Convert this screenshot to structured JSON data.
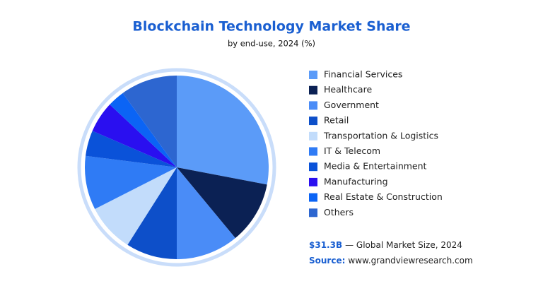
{
  "chart_data": {
    "type": "pie",
    "title": "Blockchain Technology Market Share",
    "subtitle": "by end-use, 2024 (%)",
    "categories": [
      "Financial Services",
      "Healthcare",
      "Government",
      "Retail",
      "Transportation & Logistics",
      "IT & Telecom",
      "Media & Entertainment",
      "Manufacturing",
      "Real Estate & Construction",
      "Others"
    ],
    "values": [
      28,
      11,
      11,
      9,
      8.5,
      9.5,
      4.5,
      5.5,
      3,
      10
    ],
    "colors": [
      "#5b9bf8",
      "#0b2154",
      "#4a8cf7",
      "#0d4fc9",
      "#c2dcfb",
      "#2f7bf5",
      "#0a52d9",
      "#2a0ff0",
      "#0b64f5",
      "#2d66d0"
    ],
    "market_size": "$31.3B",
    "market_size_label": "— Global Market Size, 2024",
    "source_label": "Source:",
    "source": "www.grandviewresearch.com"
  }
}
